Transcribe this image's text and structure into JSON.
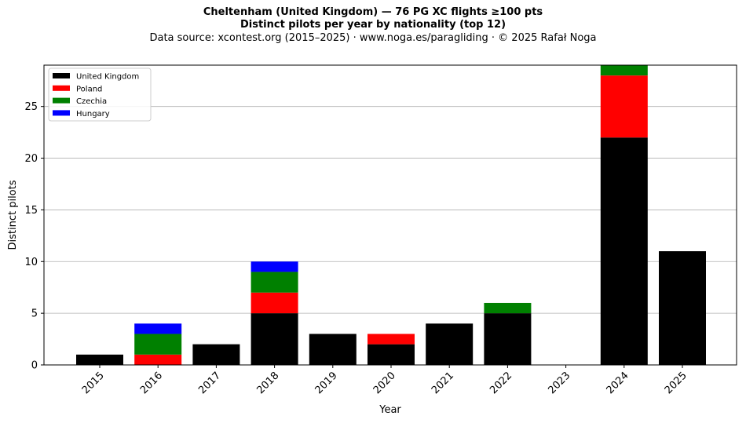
{
  "header": {
    "title": "Cheltenham (United Kingdom)  —  76 PG XC flights ≥100 pts",
    "subtitle": "Distinct pilots per year by nationality (top 12)",
    "source": "Data source: xcontest.org (2015–2025)  ·  www.noga.es/paragliding  ·  © 2025 Rafał Noga"
  },
  "chart_data": {
    "type": "bar",
    "stacked": true,
    "title": "Cheltenham (United Kingdom)  —  76 PG XC flights ≥100 pts",
    "subtitle": "Distinct pilots per year by nationality (top 12)",
    "xlabel": "Year",
    "ylabel": "Distinct pilots",
    "ylim": [
      0,
      29
    ],
    "yticks": [
      0,
      5,
      10,
      15,
      20,
      25
    ],
    "grid": "y",
    "legend_position": "top-left",
    "categories": [
      "2015",
      "2016",
      "2017",
      "2018",
      "2019",
      "2020",
      "2021",
      "2022",
      "2023",
      "2024",
      "2025"
    ],
    "series": [
      {
        "name": "United Kingdom",
        "color": "#000000",
        "values": [
          1,
          0,
          2,
          5,
          3,
          2,
          4,
          5,
          0,
          22,
          11
        ]
      },
      {
        "name": "Poland",
        "color": "#ff0000",
        "values": [
          0,
          1,
          0,
          2,
          0,
          1,
          0,
          0,
          0,
          6,
          0
        ]
      },
      {
        "name": "Czechia",
        "color": "#008000",
        "values": [
          0,
          2,
          0,
          2,
          0,
          0,
          0,
          1,
          0,
          1,
          0
        ]
      },
      {
        "name": "Hungary",
        "color": "#0000ff",
        "values": [
          0,
          1,
          0,
          1,
          0,
          0,
          0,
          0,
          0,
          0,
          0
        ]
      }
    ]
  }
}
